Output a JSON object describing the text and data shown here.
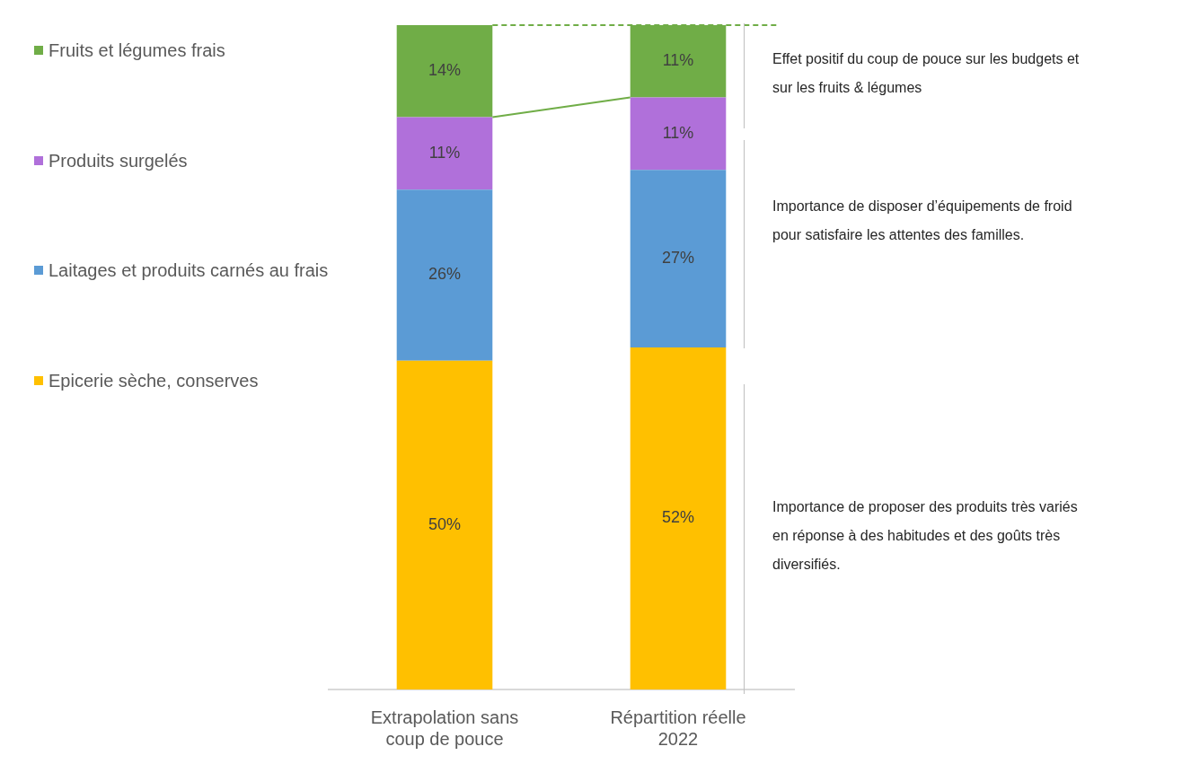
{
  "chart_data": {
    "type": "bar",
    "stacked": true,
    "legend": "left",
    "data_labels": true,
    "categories": [
      "Extrapolation sans coup de pouce",
      "Répartition réelle 2022"
    ],
    "series": [
      {
        "name": "Epicerie sèche, conserves",
        "color": "#ffc000",
        "values": [
          50,
          52
        ],
        "value_labels": [
          "50%",
          "52%"
        ]
      },
      {
        "name": "Laitages et produits carnés au frais",
        "color": "#5b9bd5",
        "values": [
          26,
          27
        ],
        "value_labels": [
          "26%",
          "27%"
        ]
      },
      {
        "name": "Produits surgelés",
        "color": "#b070da",
        "values": [
          11,
          11
        ],
        "value_labels": [
          "11%",
          "11%"
        ]
      },
      {
        "name": "Fruits et légumes frais",
        "color": "#70ad47",
        "values": [
          14,
          11
        ],
        "value_labels": [
          "14%",
          "11%"
        ]
      }
    ],
    "ref_lines": [
      {
        "axis": "y",
        "value": 101,
        "color": "#70ad47",
        "line_style": "dashed"
      }
    ],
    "annotations": [
      "Effet positif du coup de pouce sur les budgets et sur les fruits & légumes",
      "Importance de disposer d’équipements de froid pour satisfaire les attentes des familles.",
      "Importance de proposer des produits très variés en réponse à des habitudes et des goûts très diversifiés."
    ]
  }
}
